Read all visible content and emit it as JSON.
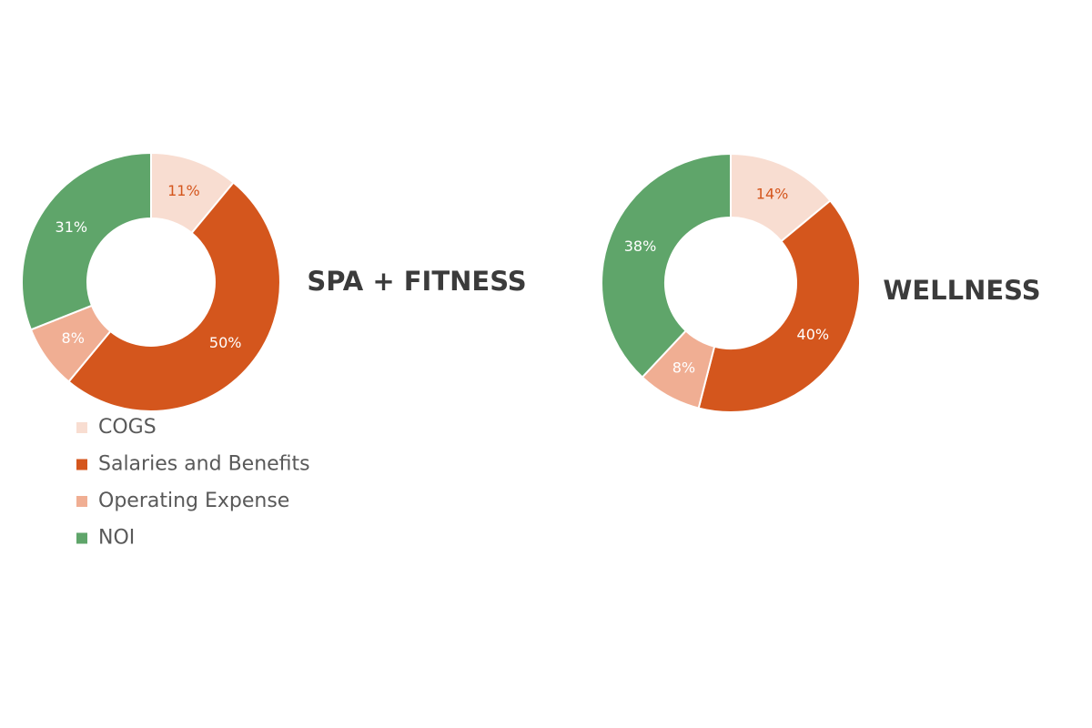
{
  "chart_data": [
    {
      "type": "donut",
      "title": "SPA + FITNESS",
      "categories": [
        "COGS",
        "Salaries and Benefits",
        "Operating Expense",
        "NOI"
      ],
      "values": [
        11,
        50,
        8,
        31
      ],
      "value_labels": [
        "11%",
        "50%",
        "8%",
        "31%"
      ],
      "colors": [
        "#f8ddd1",
        "#d4561d",
        "#f0ae93",
        "#5fa56a"
      ],
      "legend": "bottom"
    },
    {
      "type": "donut",
      "title": "WELLNESS",
      "categories": [
        "COGS",
        "Salaries and Benefits",
        "Operating Expense",
        "NOI"
      ],
      "values": [
        14,
        40,
        8,
        38
      ],
      "value_labels": [
        "14%",
        "40%",
        "8%",
        "38%"
      ],
      "colors": [
        "#f8ddd1",
        "#d4561d",
        "#f0ae93",
        "#5fa56a"
      ],
      "legend": "none"
    }
  ]
}
